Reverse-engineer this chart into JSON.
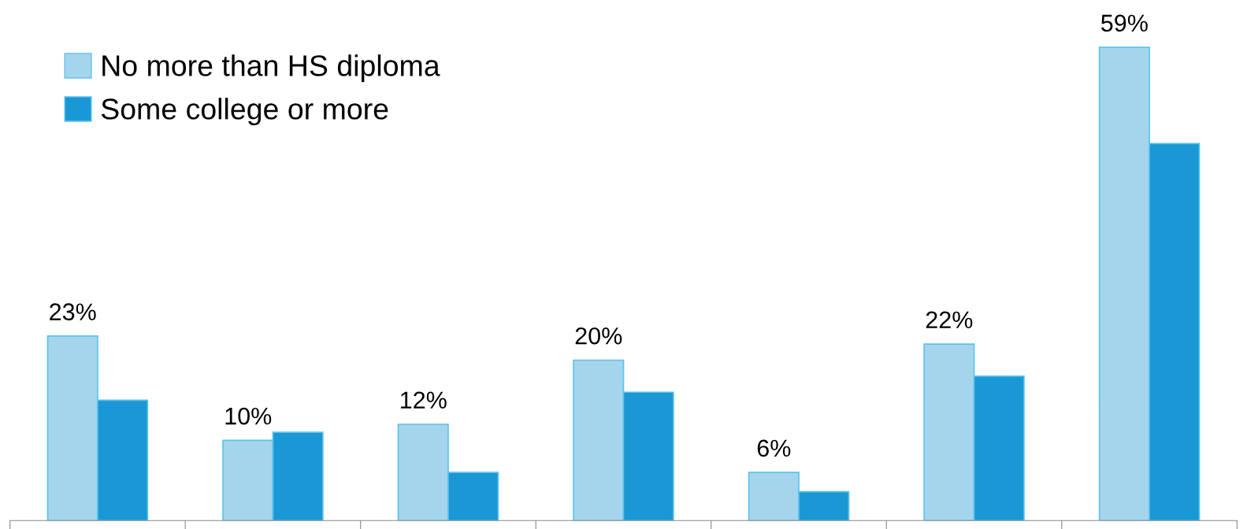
{
  "chart_data": {
    "type": "bar",
    "categories": [
      null,
      null,
      null,
      null,
      null,
      null,
      null
    ],
    "series": [
      {
        "name": "No more than HS diploma",
        "color": "#a5d5ec",
        "values": [
          23,
          10,
          12,
          20,
          6,
          22,
          59
        ],
        "value_labels": [
          "23%",
          "10%",
          "12%",
          "20%",
          "6%",
          "22%",
          "59%"
        ]
      },
      {
        "name": "Some college or more",
        "color": "#1a98d5",
        "values": [
          15,
          11,
          6,
          16,
          3.6,
          18,
          47
        ]
      }
    ],
    "grid": false,
    "legend": "top left"
  }
}
